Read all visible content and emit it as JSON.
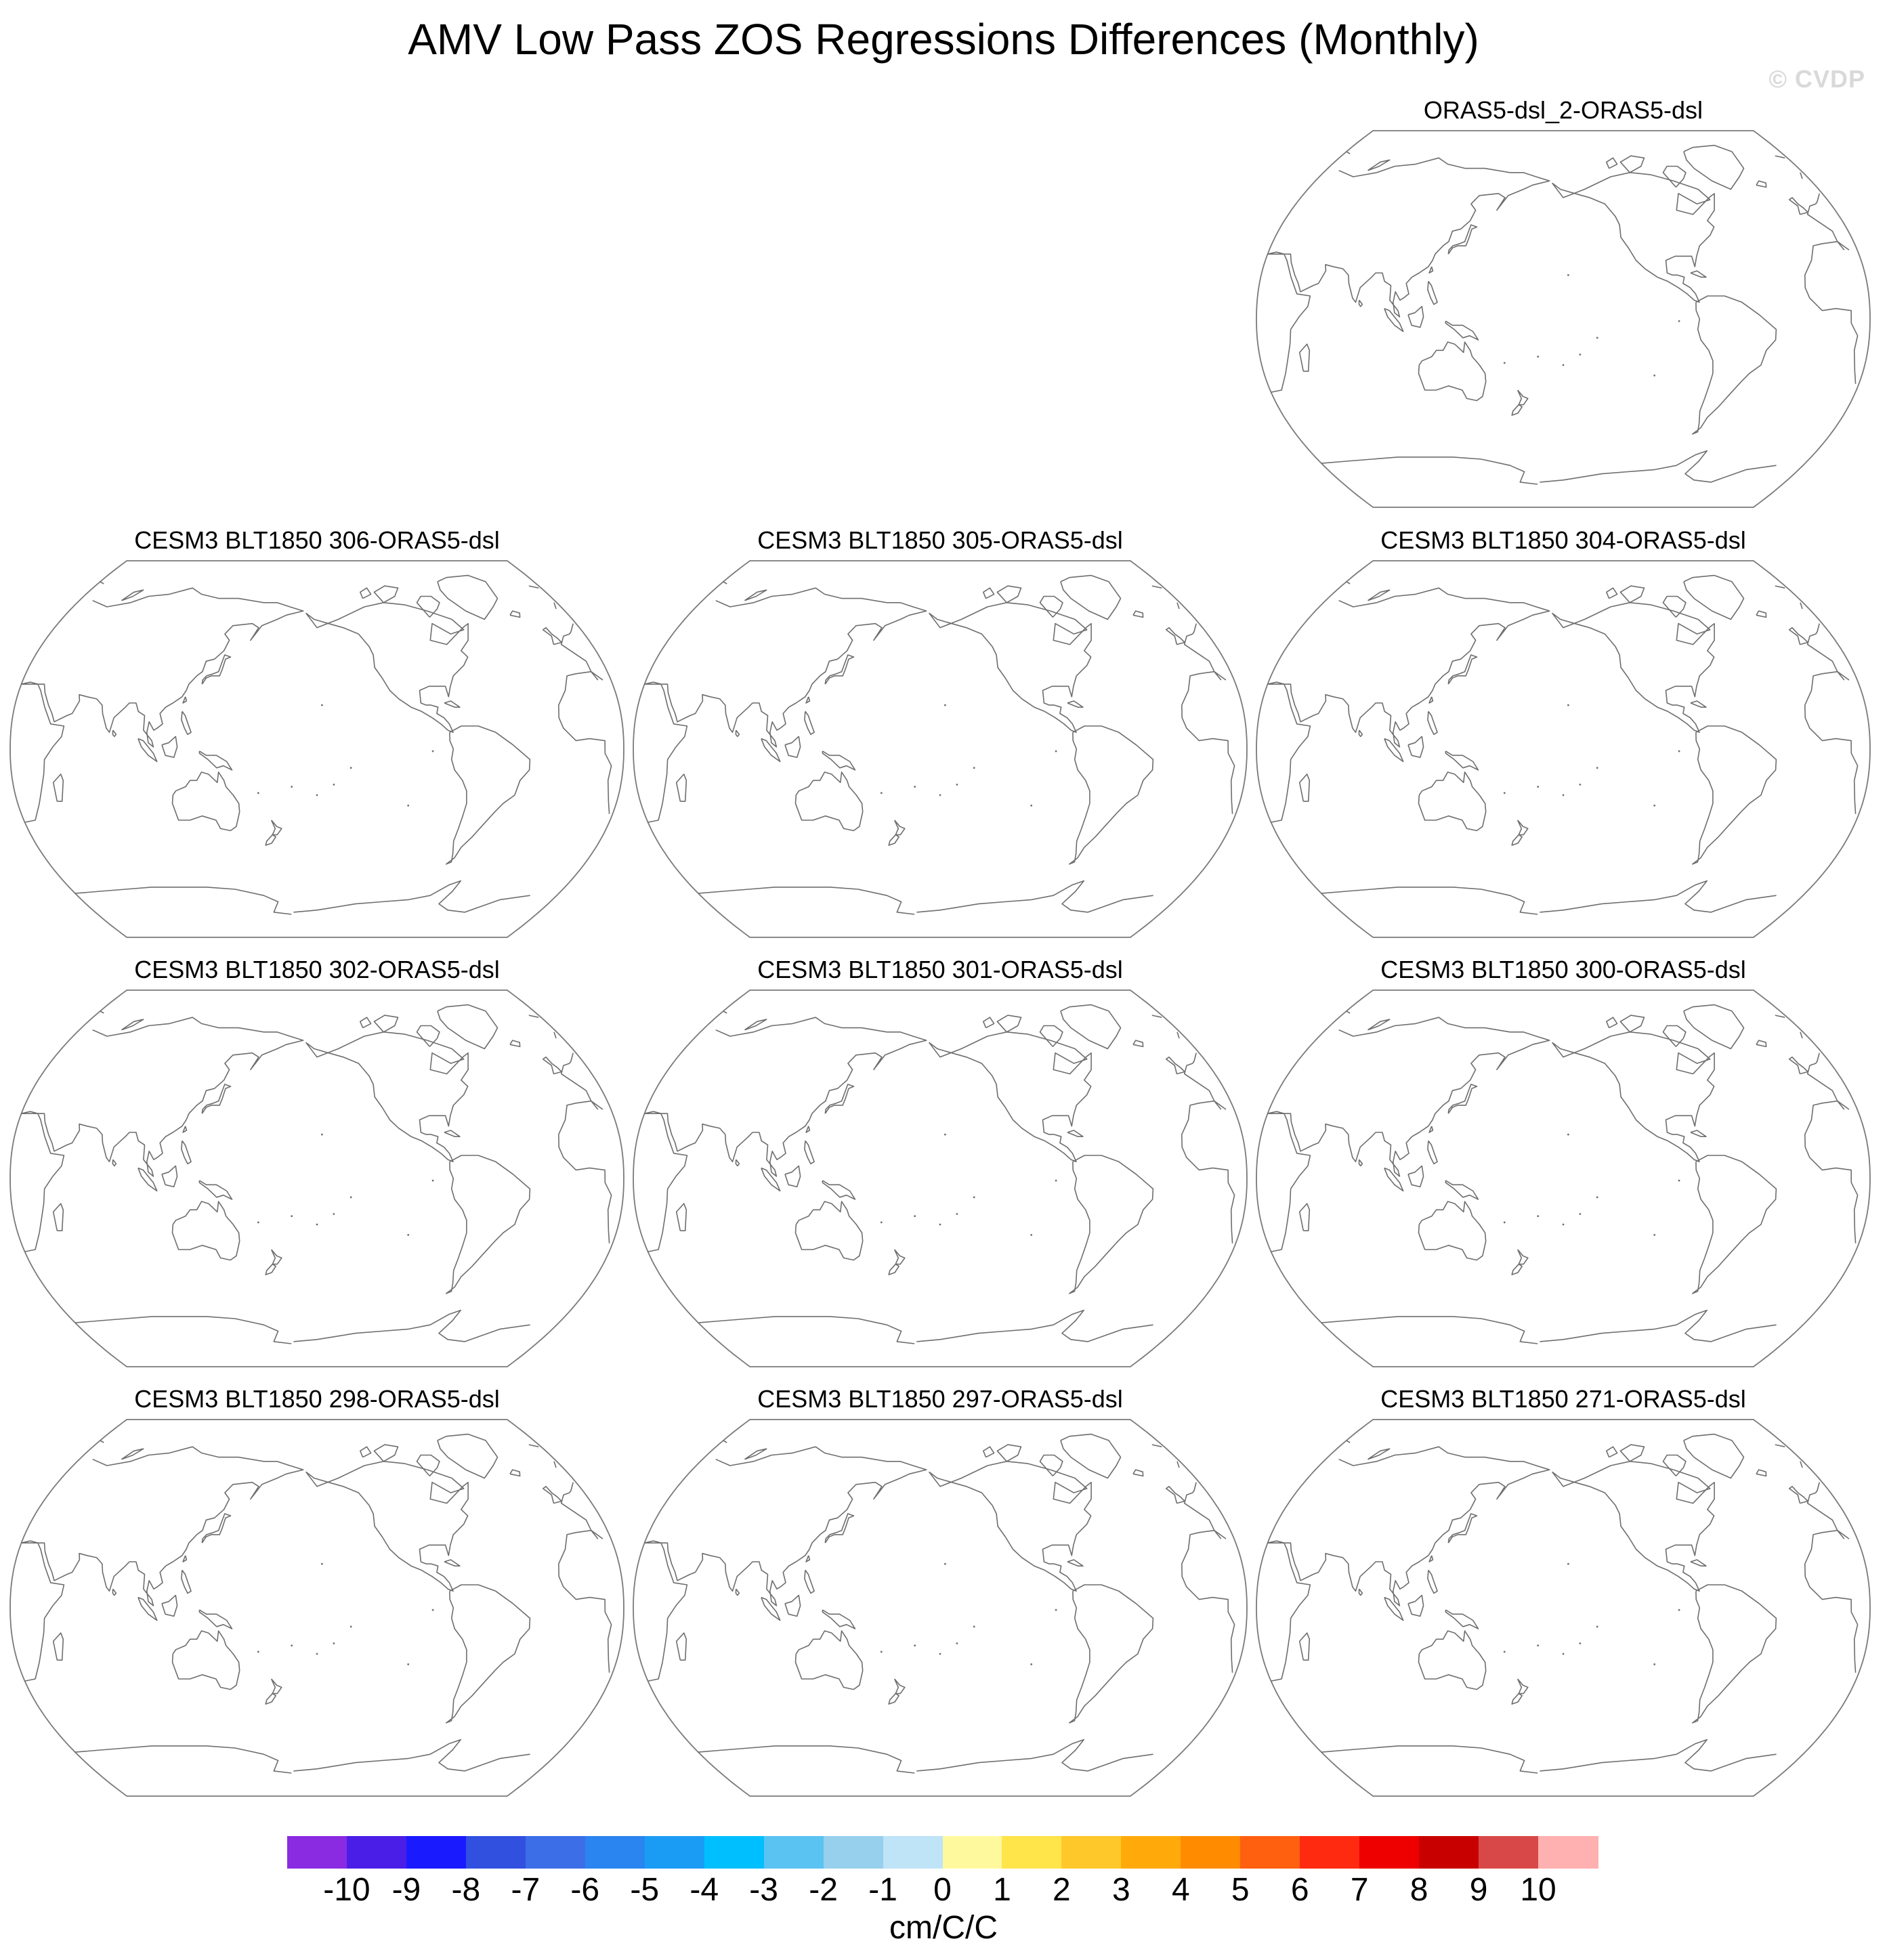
{
  "figure": {
    "title": "AMV Low Pass ZOS Regressions Differences (Monthly)",
    "watermark": "© CVDP"
  },
  "panels": [
    {
      "id": "p0",
      "title": "ORAS5-dsl_2-ORAS5-dsl"
    },
    {
      "id": "p1",
      "title": "CESM3 BLT1850 306-ORAS5-dsl"
    },
    {
      "id": "p2",
      "title": "CESM3 BLT1850 305-ORAS5-dsl"
    },
    {
      "id": "p3",
      "title": "CESM3 BLT1850 304-ORAS5-dsl"
    },
    {
      "id": "p4",
      "title": "CESM3 BLT1850 302-ORAS5-dsl"
    },
    {
      "id": "p5",
      "title": "CESM3 BLT1850 301-ORAS5-dsl"
    },
    {
      "id": "p6",
      "title": "CESM3 BLT1850 300-ORAS5-dsl"
    },
    {
      "id": "p7",
      "title": "CESM3 BLT1850 298-ORAS5-dsl"
    },
    {
      "id": "p8",
      "title": "CESM3 BLT1850 297-ORAS5-dsl"
    },
    {
      "id": "p9",
      "title": "CESM3 BLT1850 271-ORAS5-dsl"
    }
  ],
  "colorbar": {
    "units": "cm/C/C",
    "labels": [
      "-10",
      "-9",
      "-8",
      "-7",
      "-6",
      "-5",
      "-4",
      "-3",
      "-2",
      "-1",
      "0",
      "1",
      "2",
      "3",
      "4",
      "5",
      "6",
      "7",
      "8",
      "9",
      "10"
    ],
    "colors": [
      "#8a2be2",
      "#4b1ee8",
      "#1a1aff",
      "#3250e0",
      "#3c6ee8",
      "#2a85f0",
      "#1a9cf5",
      "#00bfff",
      "#5ac3f2",
      "#96d0ec",
      "#bfe3f7",
      "#fff99e",
      "#ffe44a",
      "#ffc82a",
      "#ffaa0a",
      "#ff8c00",
      "#ff6010",
      "#ff2a10",
      "#ee0000",
      "#c80000",
      "#d94848",
      "#ffb0b0"
    ]
  }
}
